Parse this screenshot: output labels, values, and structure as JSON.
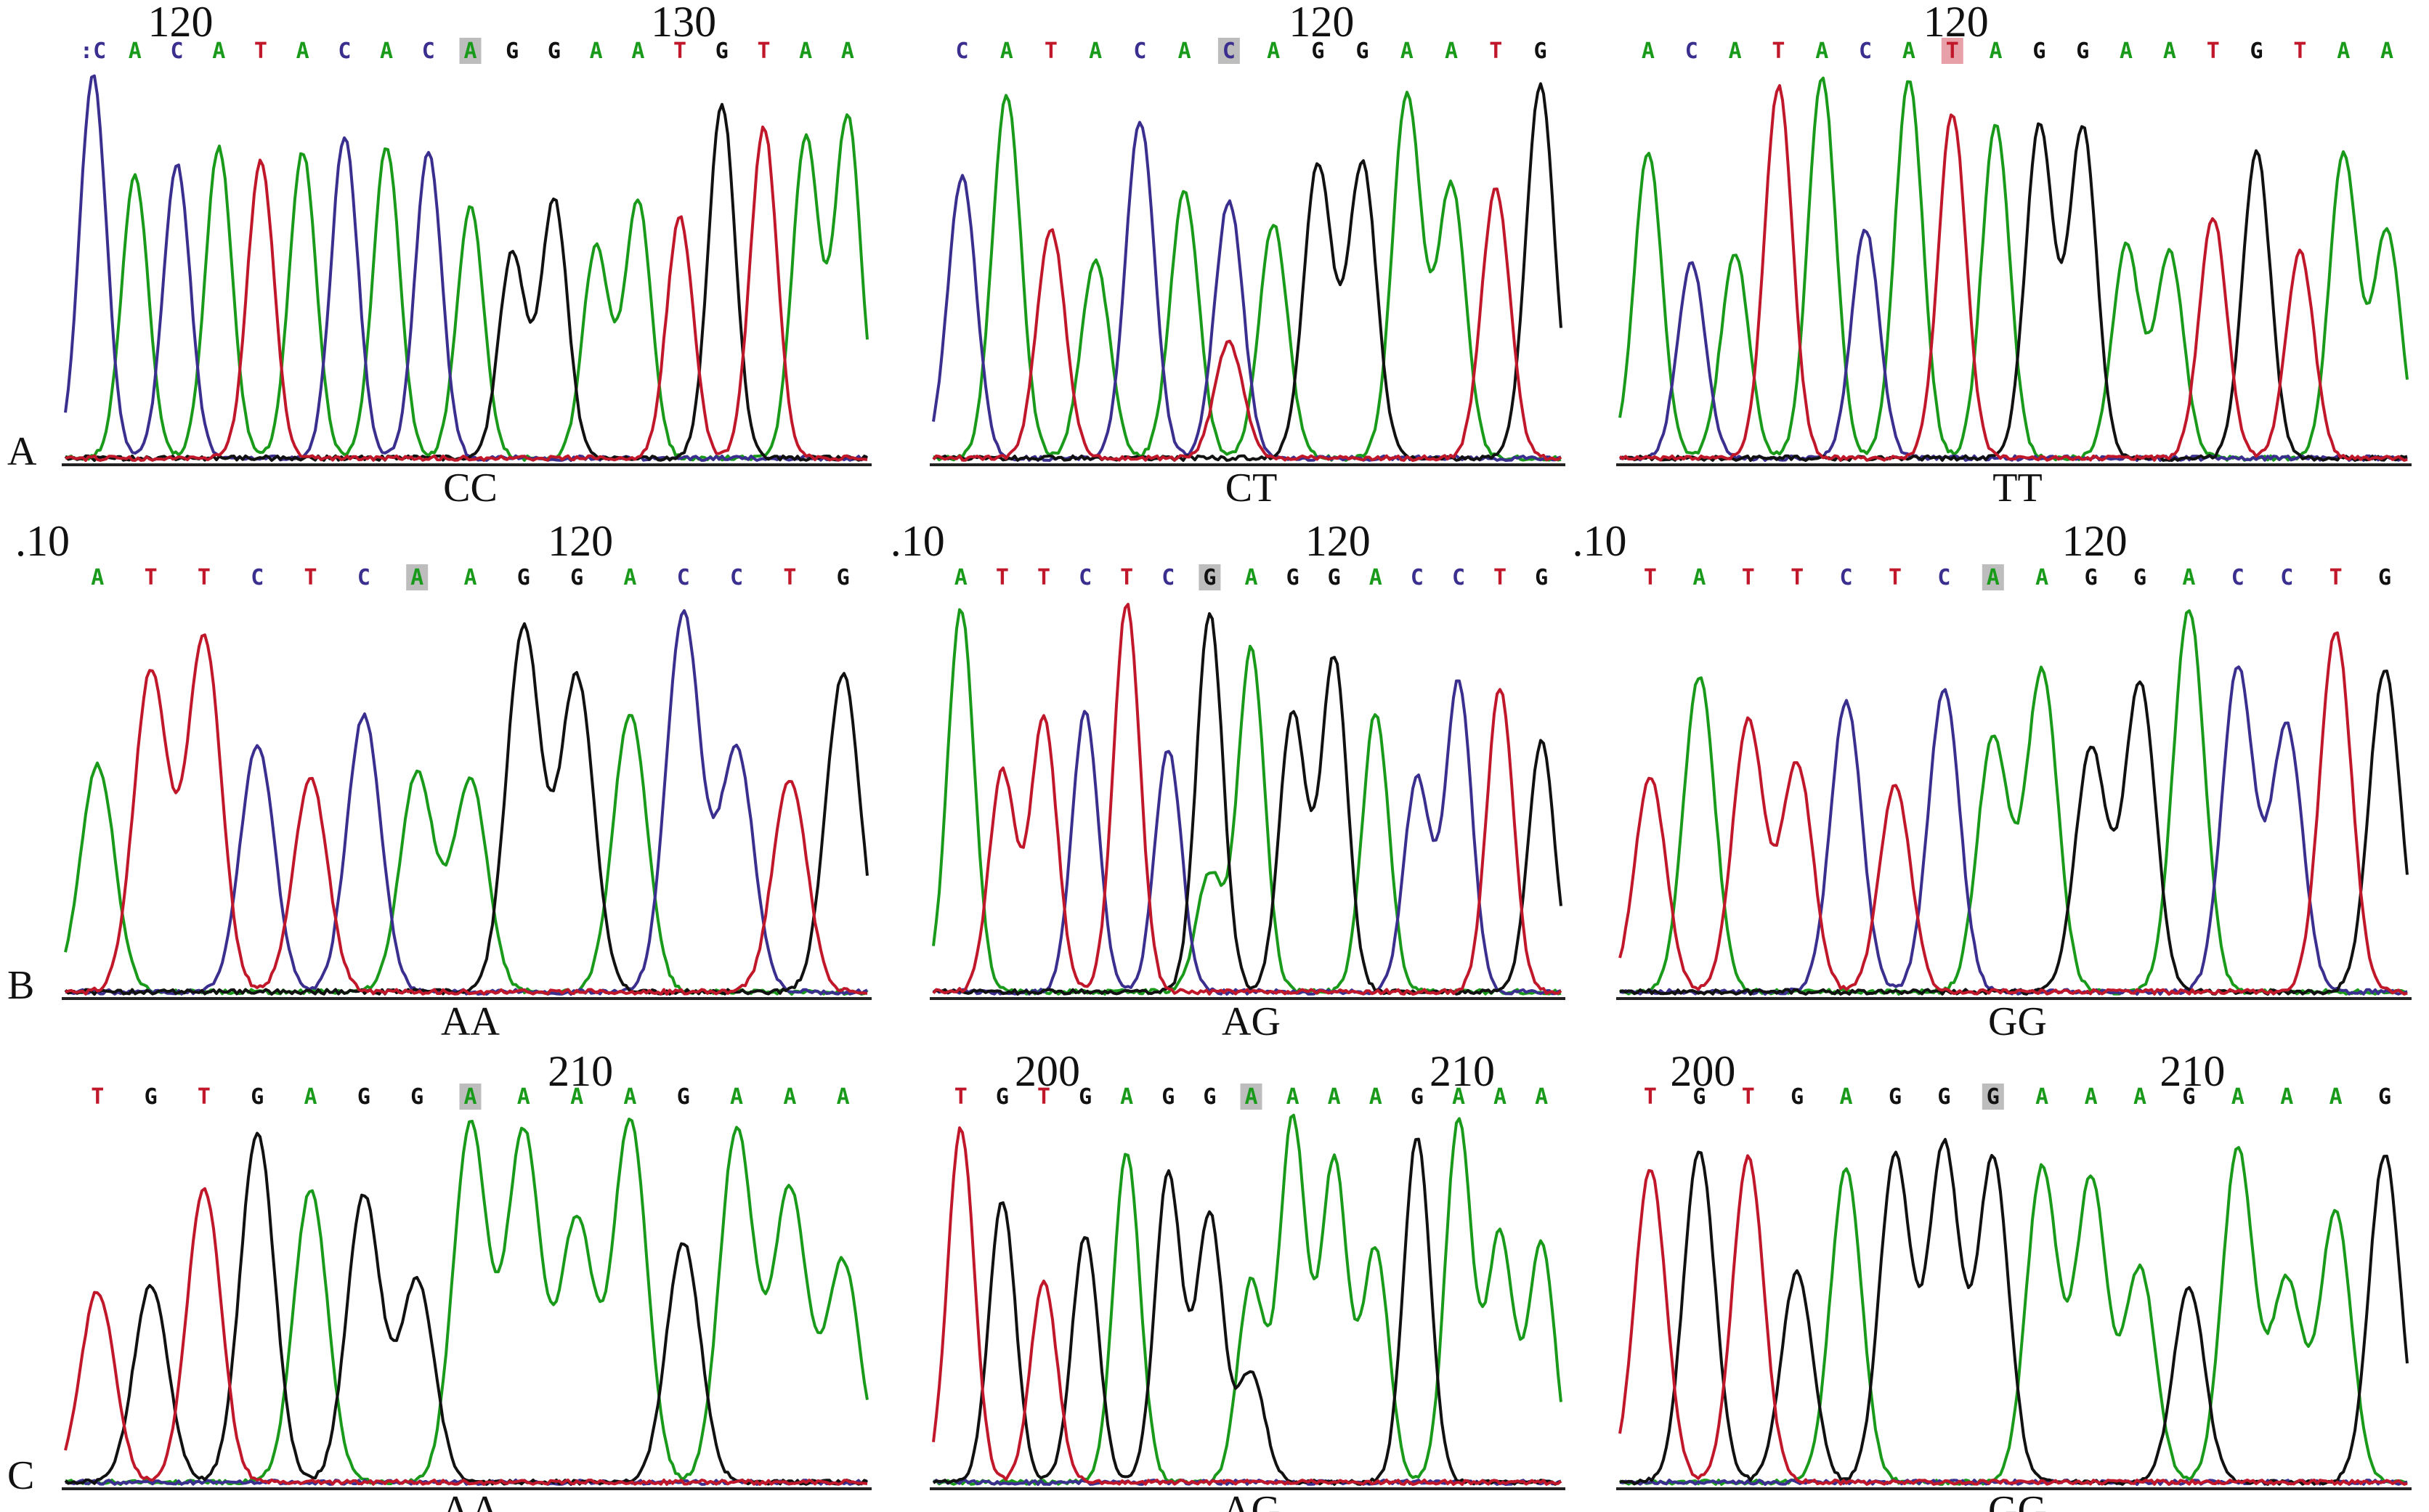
{
  "colors": {
    "A": "#1a9a1a",
    "C": "#3a2f8f",
    "G": "#111111",
    "T": "#c0182a",
    "highlight": "#bdbdbd",
    "highlight_T": "#e8a0a8"
  },
  "rows": [
    {
      "letter": "A",
      "panels": [
        {
          "seq": "CACATACACAGGAATGTAA",
          "first_partial": true,
          "snp": 9,
          "snp_hl": "highlight",
          "ticks": [
            {
              "label": "120",
              "pos": 2
            },
            {
              "label": "130",
              "pos": 14
            }
          ],
          "genotype": "CC"
        },
        {
          "seq": "CATACACAGGAATG",
          "first_partial": false,
          "snp": 6,
          "snp_hl": "highlight",
          "ticks": [
            {
              "label": "120",
              "pos": 8
            }
          ],
          "genotype": "CT"
        },
        {
          "seq": "ACATACATAGGAATGTAA",
          "first_partial": false,
          "snp": 7,
          "snp_hl": "highlight_T",
          "ticks": [
            {
              "label": "120",
              "pos": 7
            }
          ],
          "genotype": "TT"
        }
      ]
    },
    {
      "letter": "B",
      "panels": [
        {
          "seq": "ATTCTCAAGGACCTG",
          "first_partial": false,
          "snp": 6,
          "snp_hl": "highlight",
          "ticks": [
            {
              "label": ".10",
              "pos": -1
            },
            {
              "label": "120",
              "pos": 9
            }
          ],
          "genotype": "AA"
        },
        {
          "seq": "ATTCTCGAGGACCTG",
          "first_partial": false,
          "snp": 6,
          "snp_hl": "highlight",
          "ticks": [
            {
              "label": ".10",
              "pos": -1
            },
            {
              "label": "120",
              "pos": 9
            }
          ],
          "genotype": "AG"
        },
        {
          "seq": "TATTCTCAAGGACCTG",
          "first_partial": false,
          "snp": 7,
          "snp_hl": "highlight",
          "ticks": [
            {
              "label": ".10",
              "pos": -1
            },
            {
              "label": "120",
              "pos": 9
            }
          ],
          "genotype": "GG"
        }
      ]
    },
    {
      "letter": "C",
      "panels": [
        {
          "seq": "TGTGAGGAAAAGAAA",
          "first_partial": false,
          "snp": 7,
          "snp_hl": "highlight",
          "ticks": [
            {
              "label": "210",
              "pos": 9
            }
          ],
          "genotype": "AA"
        },
        {
          "seq": "TGTGAGGAAAAGAAA",
          "first_partial": false,
          "snp": 7,
          "snp_hl": "highlight",
          "ticks": [
            {
              "label": "200",
              "pos": 2
            },
            {
              "label": "210",
              "pos": 12
            }
          ],
          "genotype": "AG"
        },
        {
          "seq": "TGTGAGGGAAAGAAAG",
          "first_partial": false,
          "snp": 7,
          "snp_hl": "highlight",
          "ticks": [
            {
              "label": "200",
              "pos": 1
            },
            {
              "label": "210",
              "pos": 11
            }
          ],
          "genotype": "GG"
        }
      ]
    }
  ]
}
